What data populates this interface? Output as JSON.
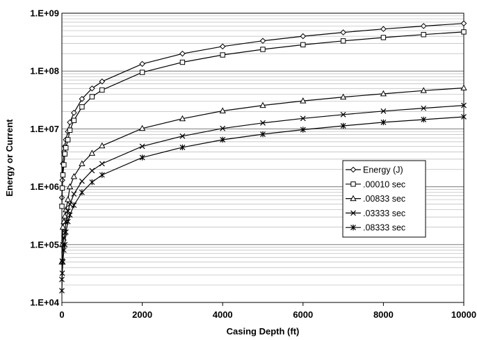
{
  "chart_data": {
    "type": "line",
    "title": "",
    "xlabel": "Casing Depth (ft)",
    "ylabel": "Energy or Current",
    "xlim": [
      0,
      10000
    ],
    "ylim": [
      10000,
      1000000000
    ],
    "y_scale": "log",
    "grid": true,
    "legend_position": "right",
    "x_ticks": [
      "0",
      "2000",
      "4000",
      "6000",
      "8000",
      "10000"
    ],
    "y_ticks": [
      "1.E+04",
      "1.E+05",
      "1.E+06",
      "1.E+07",
      "1.E+08",
      "1.E+09"
    ],
    "x": [
      0,
      10,
      25,
      50,
      75,
      100,
      150,
      200,
      300,
      500,
      750,
      1000,
      2000,
      3000,
      4000,
      5000,
      6000,
      7000,
      8000,
      9000,
      10000
    ],
    "series": [
      {
        "name": "Energy  (J)",
        "marker": "diamond",
        "values": [
          650000,
          1300000,
          2500000,
          4000000,
          5000000,
          6500000,
          9000000,
          13000000,
          19000000,
          33000000,
          50000000,
          66000000,
          133000000,
          200000000,
          266000000,
          333000000,
          400000000,
          466000000,
          533000000,
          600000000,
          666000000
        ]
      },
      {
        "name": ".00010 sec",
        "marker": "square",
        "values": [
          460000,
          950000,
          1600000,
          2400000,
          3700000,
          4700000,
          6500000,
          9500000,
          14000000,
          24000000,
          36000000,
          47000000,
          95000000,
          142000000,
          190000000,
          237000000,
          285000000,
          332000000,
          380000000,
          427000000,
          475000000
        ]
      },
      {
        "name": ".00833 sec",
        "marker": "triangle",
        "values": [
          50000,
          100000,
          200000,
          250000,
          310000,
          400000,
          600000,
          1000000,
          1500000,
          2500000,
          3800000,
          5100000,
          10200000,
          15000000,
          20500000,
          25500000,
          30500000,
          35500000,
          40500000,
          46000000,
          51000000
        ]
      },
      {
        "name": ".03333 sec",
        "marker": "x",
        "values": [
          25000,
          52000,
          100000,
          130000,
          160000,
          250000,
          380000,
          500000,
          750000,
          1250000,
          1900000,
          2500000,
          5000000,
          7500000,
          10200000,
          12700000,
          15200000,
          17700000,
          20300000,
          22800000,
          25500000
        ]
      },
      {
        "name": ".08333 sec",
        "marker": "star",
        "values": [
          16000,
          32000,
          50000,
          80000,
          100000,
          165000,
          250000,
          325000,
          480000,
          800000,
          1200000,
          1600000,
          3200000,
          4800000,
          6500000,
          8100000,
          9700000,
          11300000,
          13000000,
          14500000,
          16200000
        ]
      }
    ]
  }
}
